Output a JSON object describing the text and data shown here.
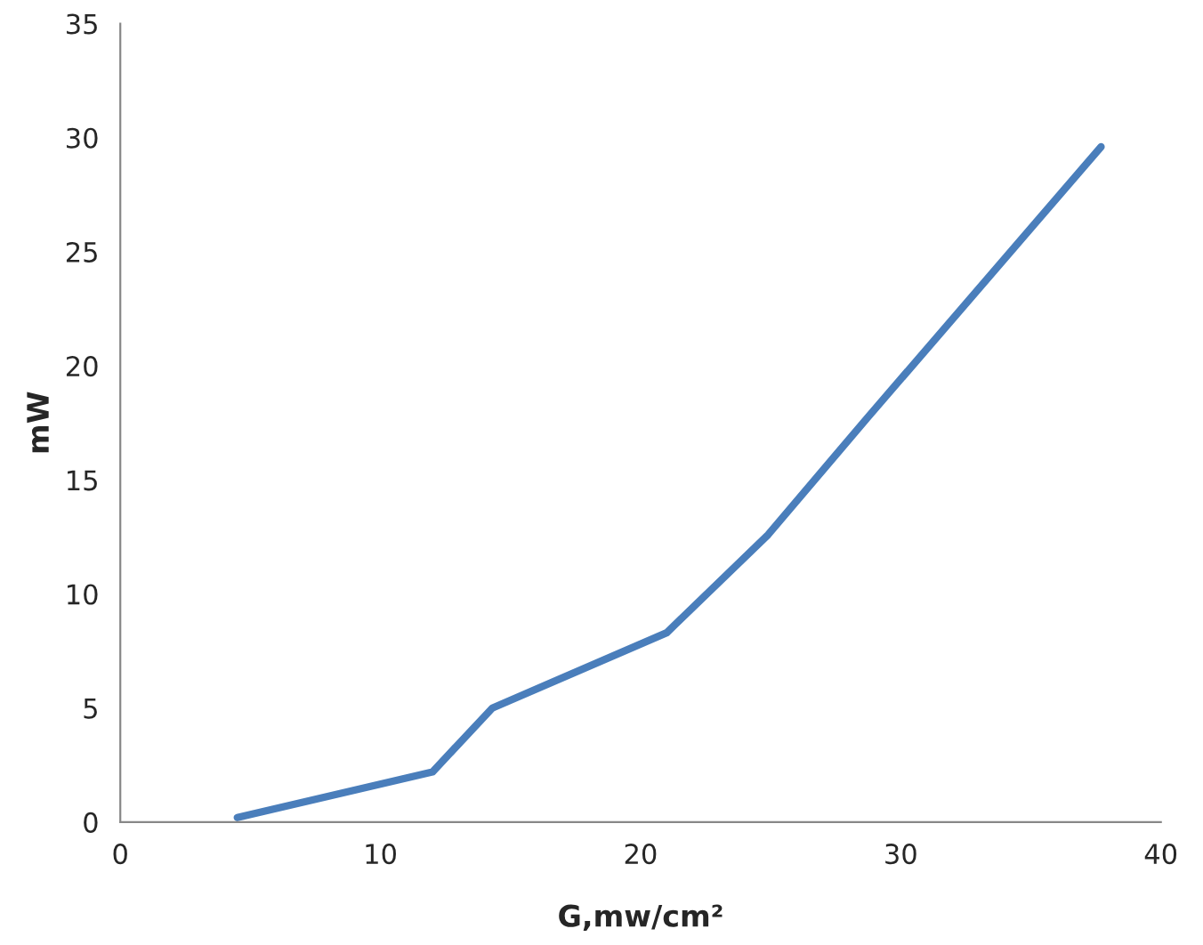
{
  "chart_data": {
    "type": "line",
    "xlabel": "G,mw/cm²",
    "ylabel": "mW",
    "x": [
      4.5,
      12.0,
      14.3,
      21.0,
      24.9,
      28.7,
      37.7
    ],
    "series": [
      {
        "color": "#4a7ebb",
        "values": [
          0.2,
          2.2,
          5.0,
          8.3,
          12.6,
          17.7,
          29.6
        ]
      }
    ],
    "xlim": [
      0,
      40
    ],
    "ylim": [
      0,
      35
    ],
    "xticks": [
      0,
      10,
      20,
      30,
      40
    ],
    "yticks": [
      0,
      5,
      10,
      15,
      20,
      25,
      30,
      35
    ],
    "grid": false,
    "legend": false,
    "marker": "none",
    "line_style": "solid"
  }
}
